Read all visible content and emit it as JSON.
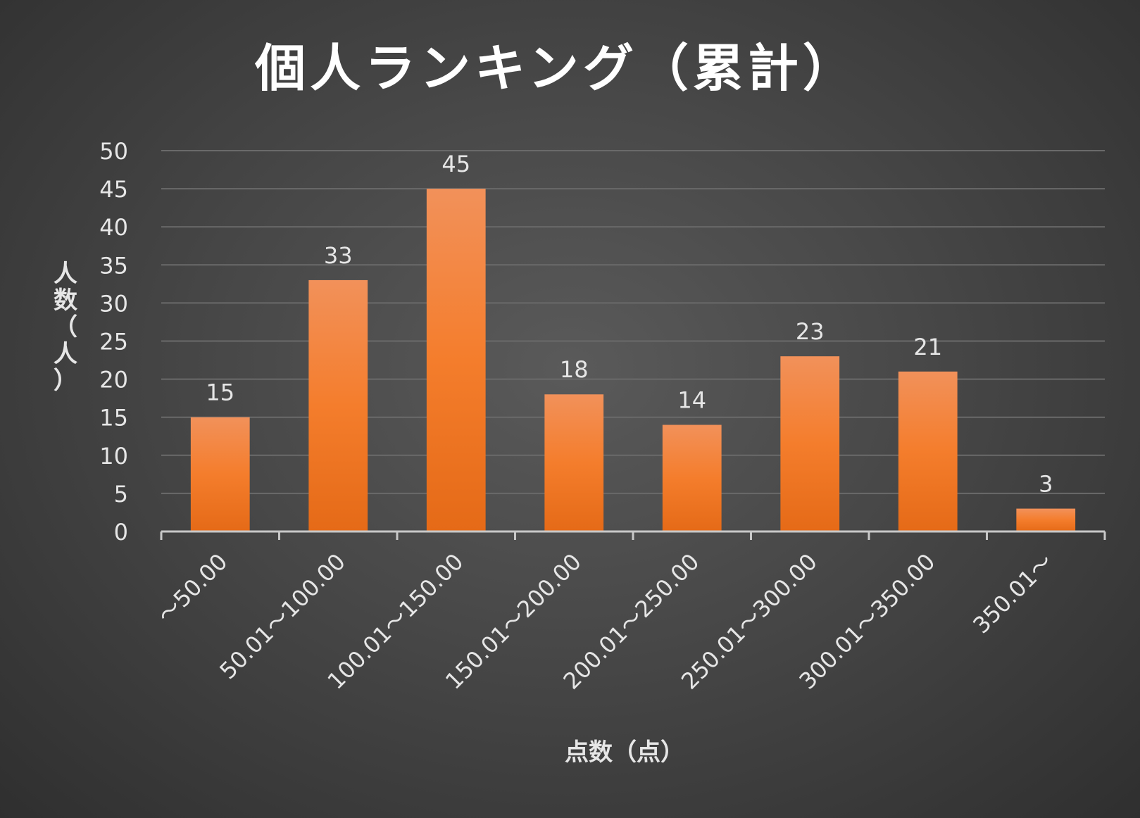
{
  "chart_data": {
    "type": "bar",
    "title": "個人ランキング（累計）",
    "xlabel": "点数（点）",
    "ylabel": "人数（人）",
    "categories": [
      "～50.00",
      "50.01～100.00",
      "100.01～150.00",
      "150.01～200.00",
      "200.01～250.00",
      "250.01～300.00",
      "300.01～350.00",
      "350.01～"
    ],
    "values": [
      15,
      33,
      45,
      18,
      14,
      23,
      21,
      3
    ],
    "ylim": [
      0,
      50
    ],
    "yticks": [
      0,
      5,
      10,
      15,
      20,
      25,
      30,
      35,
      40,
      45,
      50
    ],
    "grid": true,
    "data_labels": true,
    "bar_color": "#f07c2e",
    "background_color": "#404040"
  }
}
